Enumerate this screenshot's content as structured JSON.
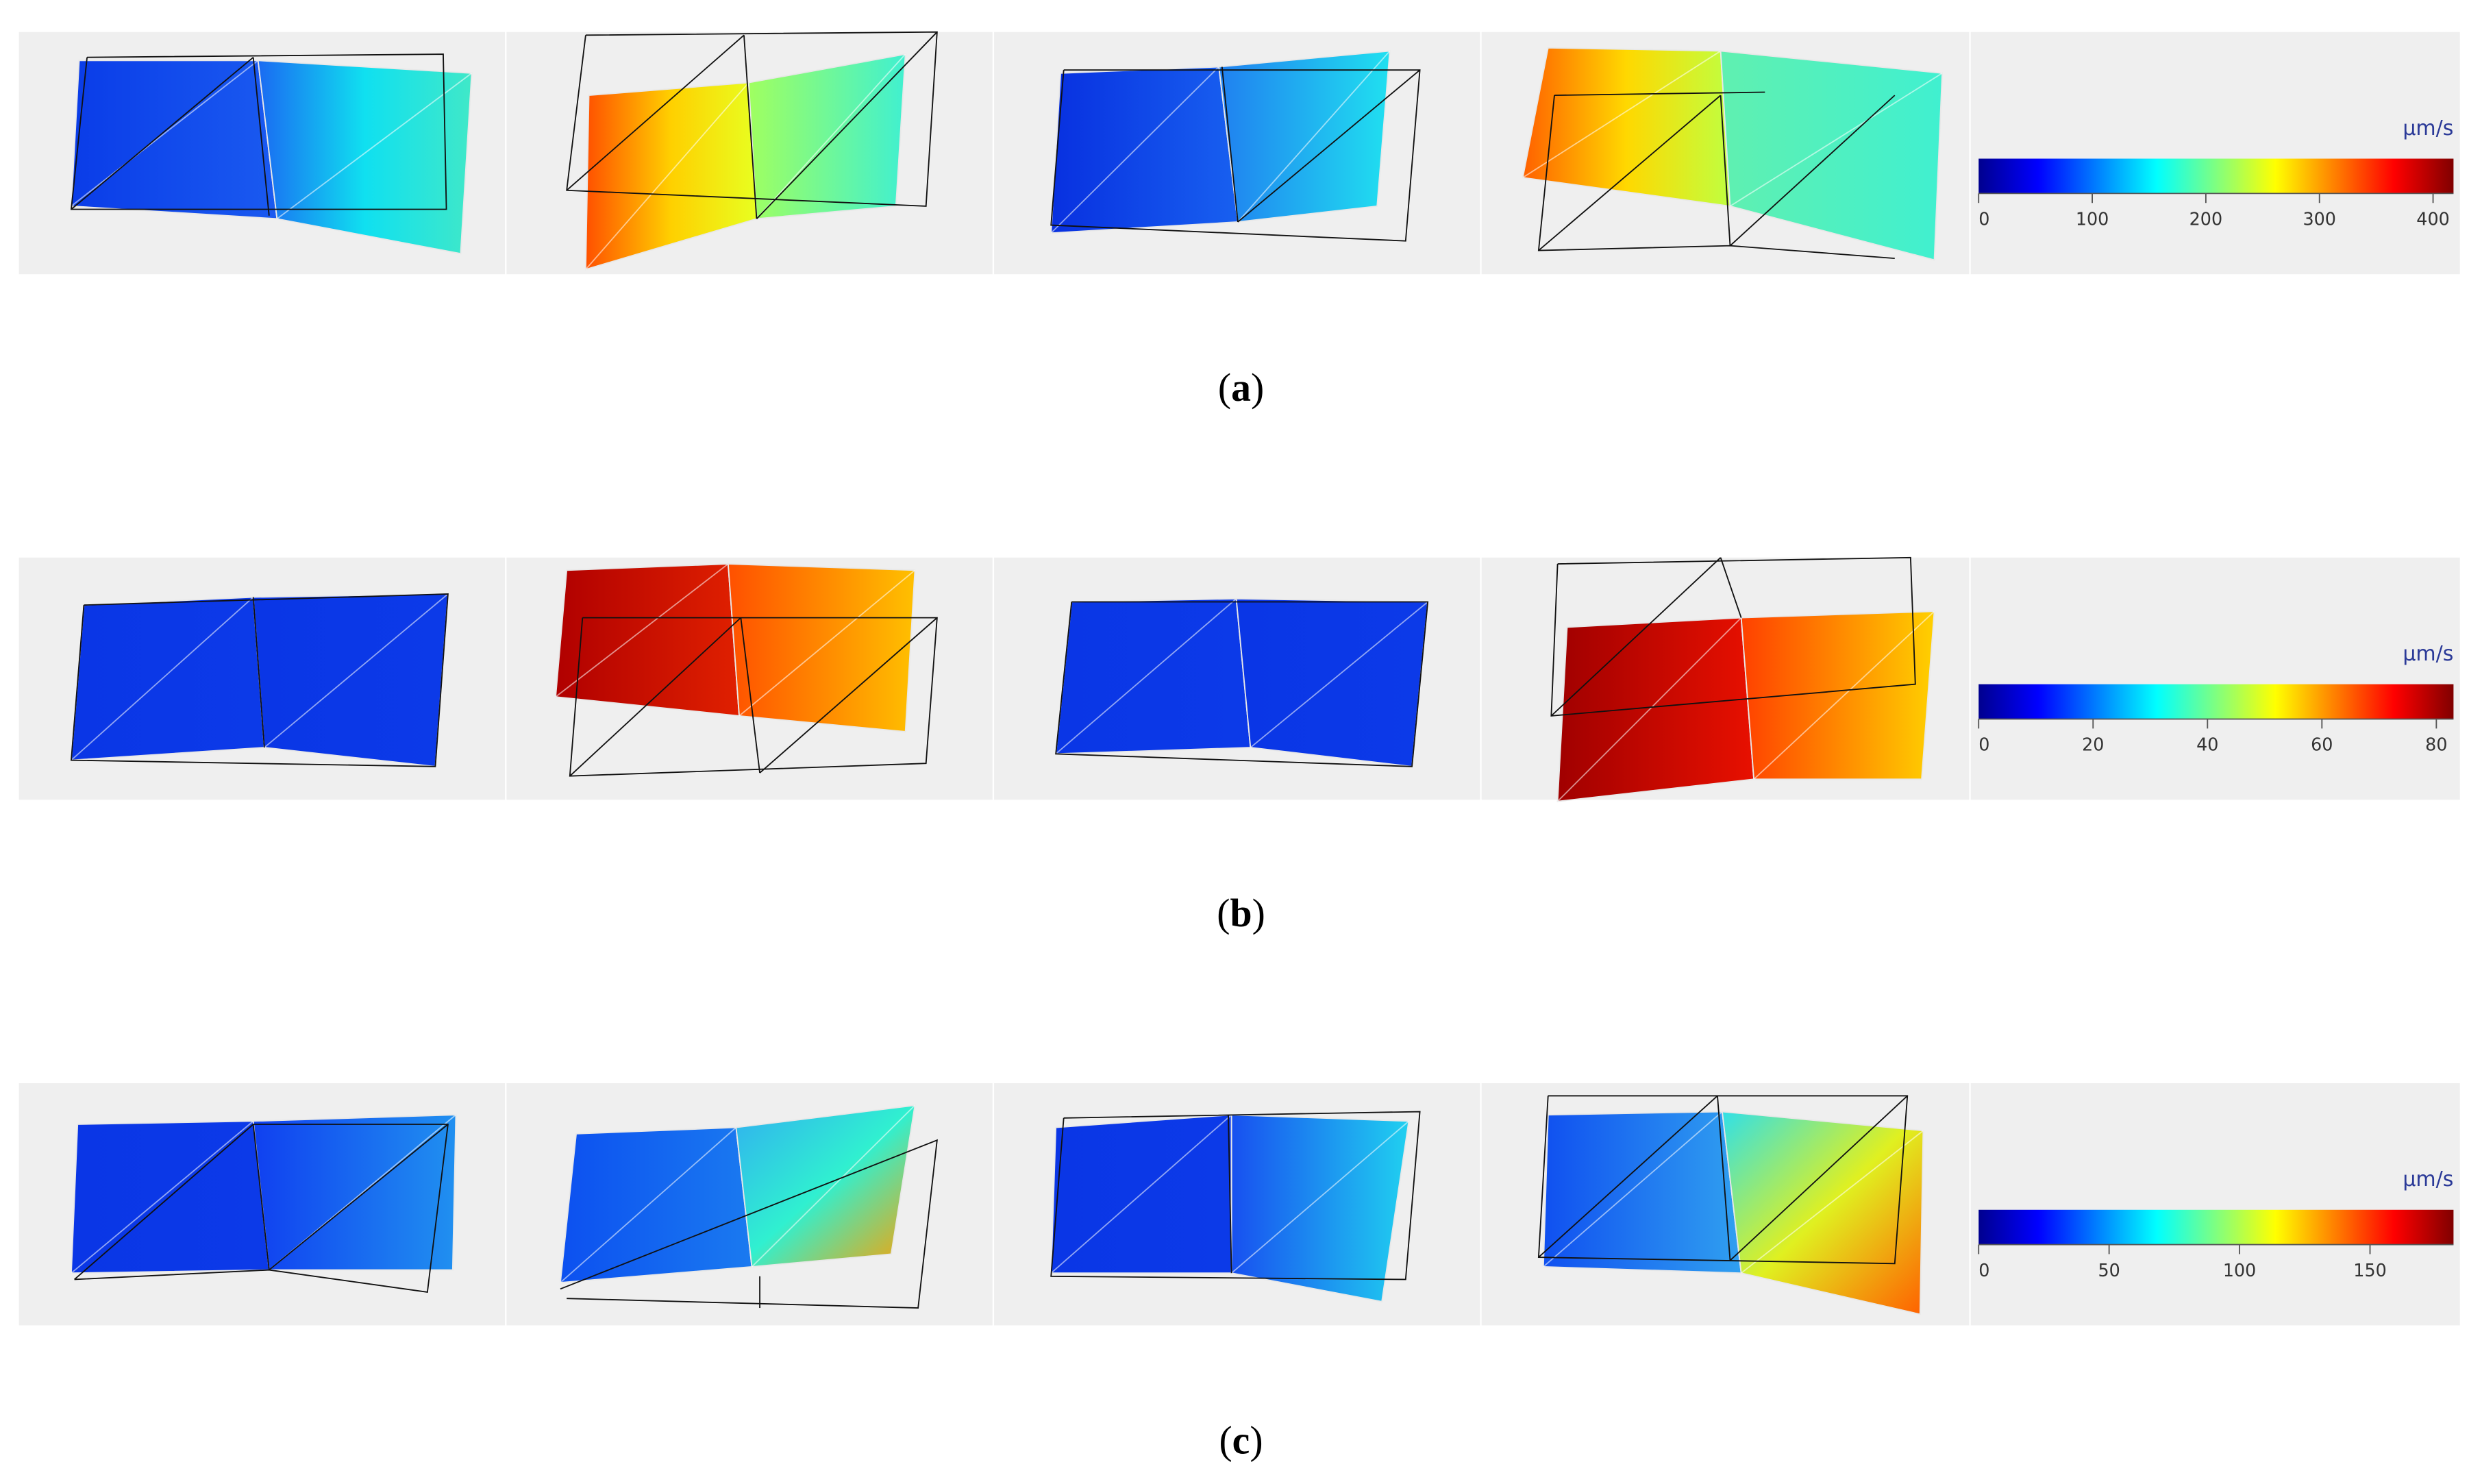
{
  "rows": [
    {
      "caption": [
        "(",
        "a",
        ")"
      ],
      "colorbar": {
        "unit": "µm/s",
        "range": [
          0,
          418
        ],
        "ticks": [
          0,
          100,
          200,
          300,
          400
        ]
      }
    },
    {
      "caption": [
        "(",
        "b",
        ")"
      ],
      "colorbar": {
        "unit": "µm/s",
        "range": [
          0,
          83
        ],
        "ticks": [
          0,
          20,
          40,
          60,
          80
        ]
      }
    },
    {
      "caption": [
        "(",
        "c",
        ")"
      ],
      "colorbar": {
        "unit": "µm/s",
        "range": [
          0,
          182
        ],
        "ticks": [
          0,
          50,
          100,
          150
        ]
      }
    }
  ]
}
